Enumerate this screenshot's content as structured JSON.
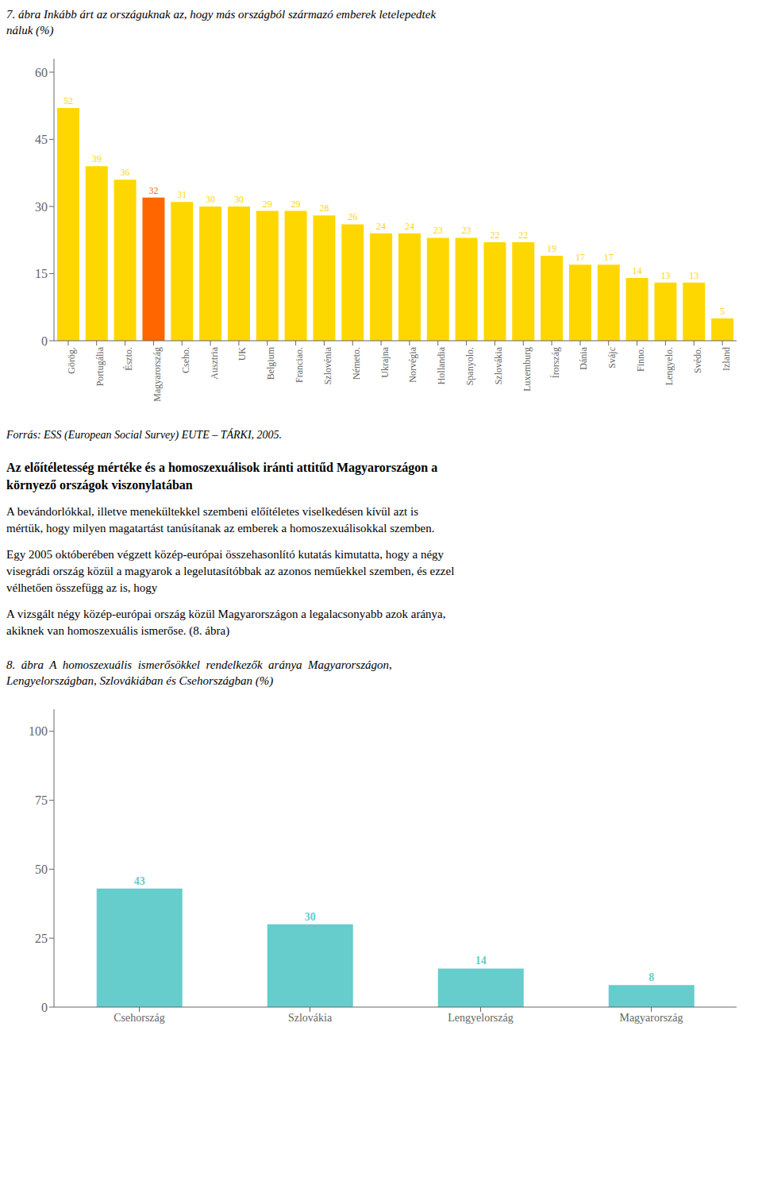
{
  "chart_data": [
    {
      "type": "bar",
      "title": "7. ábra Inkább árt az országuknak az, hogy más országból származó emberek letelepedtek\nnáluk (%)",
      "categories": [
        "Görög.",
        "Portugália",
        "Észto.",
        "Magyarország",
        "Cseho.",
        "Ausztria",
        "UK",
        "Belgium",
        "Franciao.",
        "Szlovénia",
        "Németo.",
        "Ukrajna",
        "Norvégia",
        "Hollandia",
        "Spanyolo.",
        "Szlovákia",
        "Luxemburg",
        "Írország",
        "Dánia",
        "Svájc",
        "Finno.",
        "Lengyelo.",
        "Svédo.",
        "Izland"
      ],
      "values": [
        52,
        39,
        36,
        32,
        31,
        30,
        30,
        29,
        29,
        28,
        26,
        24,
        24,
        23,
        23,
        22,
        22,
        19,
        17,
        17,
        14,
        13,
        13,
        5
      ],
      "colors": [
        "#FFD700",
        "#FFD700",
        "#FFD700",
        "#FF6600",
        "#FFD700",
        "#FFD700",
        "#FFD700",
        "#FFD700",
        "#FFD700",
        "#FFD700",
        "#FFD700",
        "#FFD700",
        "#FFD700",
        "#FFD700",
        "#FFD700",
        "#FFD700",
        "#FFD700",
        "#FFD700",
        "#FFD700",
        "#FFD700",
        "#FFD700",
        "#FFD700",
        "#FFD700",
        "#FFD700"
      ],
      "ylim": [
        0,
        63
      ],
      "yticks": [
        0,
        15,
        30,
        45,
        60
      ],
      "data_labels": true,
      "annotations": [
        "Forrás: ESS (European Social Survey) EUTE – TÁRKI, 2005."
      ]
    },
    {
      "type": "bar",
      "title": "8.  ábra  A  homoszexuális  ismerősökkel  rendelkezők  aránya  Magyarországon,\nLengyelországban, Szlovákiában és Csehországban (%)",
      "categories": [
        "Csehország",
        "Szlovákia",
        "Lengyelország",
        "Magyarország"
      ],
      "values": [
        43,
        30,
        14,
        8
      ],
      "color": "#66CCCC",
      "ylim": [
        0,
        108
      ],
      "yticks": [
        0,
        25,
        50,
        75,
        100
      ],
      "data_labels": true,
      "annotations": [
        "Az előítéletesség mértéke és a homoszexuálisok iránti attitűd Magyarországon a\nkörnyező országok viszonylatában",
        "A bevándorlókkal, illetve menekültekkel szembeni előítéletes viselkedésen kívül azt is\nmértük, hogy milyen magatartást tanúsítanak az emberek a homoszexuálisokkal szemben.",
        "Egy 2005 októberében végzett közép-európai összehasonlító kutatás kimutatta, hogy a négy\nvisegrádi ország közül a magyarok a legelutasítóbbak az azonos neműekkel szemben, és ezzel\nvélhetően összefügg az is, hogy",
        "A vizsgált négy közép-európai ország közül Magyarországon a legalacsonyabb azok aránya,\nakiknek van homoszexuális ismerőse. (8. ábra)"
      ]
    }
  ]
}
